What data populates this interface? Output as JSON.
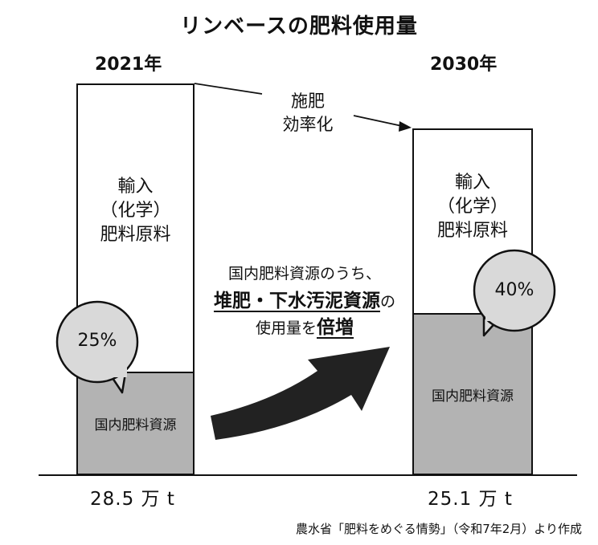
{
  "title": "リンベースの肥料使用量",
  "left": {
    "year": "2021年",
    "import_label_lines": [
      "輸入",
      "（化学）",
      "肥料原料"
    ],
    "domestic_label": "国内肥料資源",
    "percent": "25%",
    "amount": "28.5 万 t"
  },
  "right": {
    "year": "2030年",
    "import_label_lines": [
      "輸入",
      "（化学）",
      "肥料原料"
    ],
    "domestic_label": "国内肥料資源",
    "percent": "40%",
    "amount": "25.1 万 t"
  },
  "efficiency_label_lines": [
    "施肥",
    "効率化"
  ],
  "center": {
    "line1": "国内肥料資源のうち、",
    "line2_emph": "堆肥・下水汚泥資源",
    "line2_tail": "の",
    "line3_pre": "使用量を",
    "line3_emph": "倍増"
  },
  "source": "農水省「肥料をめぐる情勢」（令和7年2月）より作成",
  "colors": {
    "domestic_fill": "#b3b3b3",
    "bubble_fill": "#d9d9d9",
    "arrow_fill": "#222222"
  }
}
